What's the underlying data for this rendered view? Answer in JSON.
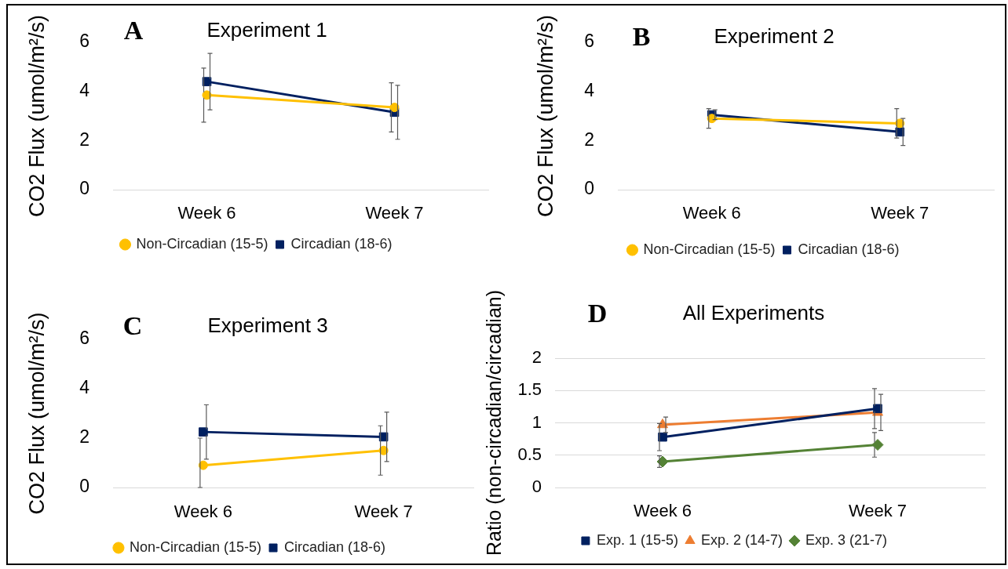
{
  "chart_data": [
    {
      "type": "line",
      "title": "Experiment 1",
      "ylabel": "CO2 Flux (umol/m²/s)",
      "annotations": [
        "A"
      ],
      "categories": [
        "Week 6",
        "Week 7"
      ],
      "series": [
        {
          "name": "Non-Circadian (15-5)",
          "color": "#ffc000",
          "marker": "circle",
          "values": [
            3.85,
            3.35
          ],
          "errors": [
            1.1,
            1.0
          ]
        },
        {
          "name": "Circadian (18-6)",
          "color": "#002060",
          "marker": "square",
          "values": [
            4.4,
            3.15
          ],
          "errors": [
            1.15,
            1.1
          ]
        }
      ],
      "ylim": [
        0,
        6
      ],
      "yticks": [
        0,
        2,
        4,
        6
      ],
      "grid": false,
      "legend": "bottom"
    },
    {
      "type": "line",
      "title": "Experiment 2",
      "ylabel": "CO2 Flux (umol/m²/s)",
      "annotations": [
        "B"
      ],
      "categories": [
        "Week 6",
        "Week 7"
      ],
      "series": [
        {
          "name": "Non-Circadian (15-5)",
          "color": "#ffc000",
          "marker": "circle",
          "values": [
            2.9,
            2.7
          ],
          "errors": [
            0.4,
            0.6
          ]
        },
        {
          "name": "Circadian (18-6)",
          "color": "#002060",
          "marker": "square",
          "values": [
            3.05,
            2.35
          ],
          "errors": [
            0.2,
            0.55
          ]
        }
      ],
      "ylim": [
        0,
        6
      ],
      "yticks": [
        0,
        2,
        4,
        6
      ],
      "grid": false,
      "legend": "bottom"
    },
    {
      "type": "line",
      "title": "Experiment 3",
      "ylabel": "CO2 Flux (umol/m²/s)",
      "annotations": [
        "C"
      ],
      "categories": [
        "Week 6",
        "Week 7"
      ],
      "series": [
        {
          "name": "Non-Circadian (15-5)",
          "color": "#ffc000",
          "marker": "circle",
          "values": [
            0.9,
            1.5
          ],
          "errors": [
            [
              0,
              2.0
            ],
            1.0
          ]
        },
        {
          "name": "Circadian (18-6)",
          "color": "#002060",
          "marker": "square",
          "values": [
            2.25,
            2.05
          ],
          "errors": [
            1.1,
            1.0
          ]
        }
      ],
      "ylim": [
        0,
        6
      ],
      "yticks": [
        0,
        2,
        4,
        6
      ],
      "grid": false,
      "legend": "bottom"
    },
    {
      "type": "line",
      "title": "All Experiments",
      "ylabel": "Ratio (non-circadian/circadian)",
      "annotations": [
        "D"
      ],
      "categories": [
        "Week 6",
        "Week 7"
      ],
      "series": [
        {
          "name": "Exp. 1 (15-5)",
          "color": "#002060",
          "marker": "square",
          "values": [
            0.78,
            1.22
          ],
          "errors": [
            0.21,
            0.31
          ]
        },
        {
          "name": "Exp. 2 (14-7)",
          "color": "#ed7d31",
          "marker": "triangle",
          "values": [
            0.97,
            1.16
          ],
          "errors": [
            0.12,
            0.28
          ]
        },
        {
          "name": "Exp. 3 (21-7)",
          "color": "#548235",
          "marker": "diamond",
          "values": [
            0.4,
            0.66
          ],
          "errors": [
            0.09,
            0.19
          ]
        }
      ],
      "ylim": [
        0,
        2
      ],
      "yticks": [
        0,
        0.5,
        1,
        1.5,
        2
      ],
      "grid": "y",
      "legend": "bottom"
    }
  ]
}
